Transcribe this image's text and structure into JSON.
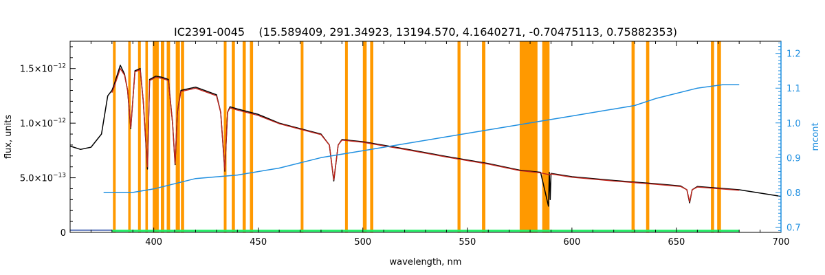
{
  "chart_data": {
    "type": "line",
    "title": "IC2391-0045    (15.589409, 291.34923, 13194.570, 4.1640271, -0.70475113, 0.75882353)",
    "xlabel": "wavelength, nm",
    "ylabel": "flux, units",
    "y2label": "mcont",
    "xlim": [
      360,
      700
    ],
    "ylim": [
      0,
      1.75e-12
    ],
    "y2lim": [
      0.685,
      1.235
    ],
    "x_ticks": [
      400,
      450,
      500,
      550,
      600,
      650,
      700
    ],
    "y_ticks": [
      {
        "value": 0,
        "mantissa": "0",
        "exponent": ""
      },
      {
        "value": 5e-13,
        "mantissa": "5.0×10",
        "exponent": "−13"
      },
      {
        "value": 1e-12,
        "mantissa": "1.0×10",
        "exponent": "−12"
      },
      {
        "value": 1.5e-12,
        "mantissa": "1.5×10",
        "exponent": "−12"
      }
    ],
    "y2_ticks": [
      0.7,
      0.8,
      0.9,
      1.0,
      1.1,
      1.2
    ],
    "masked_bands": [
      [
        380.5,
        381.8
      ],
      [
        387.8,
        389.0
      ],
      [
        392.5,
        393.8
      ],
      [
        396.0,
        397.2
      ],
      [
        399.5,
        402.4
      ],
      [
        403.4,
        405.0
      ],
      [
        406.2,
        407.8
      ],
      [
        410.5,
        412.5
      ],
      [
        413.0,
        414.5
      ],
      [
        433.5,
        434.8
      ],
      [
        437.3,
        438.8
      ],
      [
        442.5,
        444.0
      ],
      [
        446.0,
        447.5
      ],
      [
        470.3,
        471.6
      ],
      [
        491.5,
        492.8
      ],
      [
        500.0,
        501.8
      ],
      [
        503.5,
        505.0
      ],
      [
        545.3,
        546.7
      ],
      [
        557.0,
        558.6
      ],
      [
        575.0,
        583.5
      ],
      [
        585.8,
        589.3
      ],
      [
        628.5,
        630.0
      ],
      [
        635.5,
        637.0
      ],
      [
        666.5,
        668.0
      ],
      [
        669.5,
        671.3
      ]
    ],
    "series": [
      {
        "name": "",
        "role": "observed",
        "color": "#000000",
        "x": [
          360,
          365,
          370,
          375,
          378,
          380,
          381,
          384,
          386,
          387.5,
          389,
          391,
          393.5,
          395,
          397,
          398,
          401,
          404,
          407,
          409,
          410.2,
          411.3,
          413,
          420,
          430,
          432,
          434.0,
          435.3,
          436.5,
          440,
          450,
          460,
          470,
          480,
          484,
          486.1,
          488.2,
          490,
          500,
          520,
          540,
          560,
          575,
          585,
          588.8,
          589.2,
          589.6,
          590,
          600,
          620,
          640,
          652,
          655,
          656.3,
          657.5,
          660,
          680,
          700
        ],
        "y": [
          7.9e-13,
          7.6e-13,
          7.8e-13,
          9e-13,
          1.25e-12,
          1.3e-12,
          1.35e-12,
          1.53e-12,
          1.45e-12,
          1.3e-12,
          9.5e-13,
          1.48e-12,
          1.5e-12,
          1.2e-12,
          5.8e-13,
          1.4e-12,
          1.43e-12,
          1.42e-12,
          1.4e-12,
          1e-12,
          6.2e-13,
          1.1e-12,
          1.3e-12,
          1.33e-12,
          1.26e-12,
          1.1e-12,
          5.6e-13,
          1.1e-12,
          1.15e-12,
          1.13e-12,
          1.08e-12,
          1e-12,
          9.5e-13,
          9e-13,
          8e-13,
          4.7e-13,
          8e-13,
          8.5e-13,
          8.3e-13,
          7.65e-13,
          6.95e-13,
          6.3e-13,
          5.7e-13,
          5.5e-13,
          2.4e-13,
          5.5e-13,
          3e-13,
          5.4e-13,
          5.1e-13,
          4.75e-13,
          4.45e-13,
          4.25e-13,
          3.9e-13,
          2.7e-13,
          3.9e-13,
          4.2e-13,
          3.9e-13,
          3.3e-13
        ]
      },
      {
        "name": "",
        "role": "model",
        "color": "#c0261d",
        "x": [
          380,
          381,
          384,
          386,
          387.5,
          389,
          391,
          393.5,
          395,
          397,
          398,
          401,
          404,
          407,
          409,
          410.2,
          411.3,
          413,
          420,
          430,
          432,
          434.0,
          435.3,
          436.5,
          440,
          450,
          460,
          470,
          480,
          484,
          486.1,
          488.2,
          490,
          500,
          520,
          540,
          560,
          575,
          585,
          588.8,
          589.2,
          589.6,
          590,
          600,
          620,
          640,
          652,
          655,
          656.3,
          657.5,
          660,
          680
        ],
        "y": [
          1.28e-12,
          1.33e-12,
          1.5e-12,
          1.44e-12,
          1.3e-12,
          9.6e-13,
          1.47e-12,
          1.49e-12,
          1.2e-12,
          6e-13,
          1.39e-12,
          1.42e-12,
          1.41e-12,
          1.39e-12,
          1e-12,
          6.3e-13,
          1.1e-12,
          1.29e-12,
          1.32e-12,
          1.25e-12,
          1.1e-12,
          5.7e-13,
          1.1e-12,
          1.14e-12,
          1.12e-12,
          1.07e-12,
          9.95e-13,
          9.45e-13,
          8.95e-13,
          8e-13,
          4.8e-13,
          8e-13,
          8.45e-13,
          8.25e-13,
          7.6e-13,
          6.9e-13,
          6.25e-13,
          5.65e-13,
          5.45e-13,
          5.3e-13,
          5.3e-13,
          5.3e-13,
          5.35e-13,
          5.05e-13,
          4.7e-13,
          4.4e-13,
          4.2e-13,
          3.9e-13,
          2.8e-13,
          3.9e-13,
          4.15e-13,
          3.85e-13
        ]
      },
      {
        "name": "",
        "role": "residual",
        "color": "#22ee66",
        "x": [
          380,
          450,
          520,
          580,
          680
        ],
        "y": [
          1.5e-14,
          1.5e-14,
          1.5e-14,
          1.5e-14,
          1.5e-14
        ]
      },
      {
        "name": "",
        "role": "baseline",
        "color": "#1a3fa0",
        "x": [
          360,
          380
        ],
        "y": [
          2e-14,
          2e-14
        ]
      },
      {
        "name": "mcont",
        "axis": "right",
        "color": "#1f8fe0",
        "x": [
          376,
          380,
          390,
          400,
          420,
          440,
          460,
          480,
          500,
          520,
          540,
          560,
          580,
          600,
          620,
          630,
          640,
          660,
          672,
          680
        ],
        "y": [
          0.8,
          0.8,
          0.8,
          0.81,
          0.84,
          0.85,
          0.87,
          0.9,
          0.92,
          0.94,
          0.96,
          0.98,
          1.0,
          1.02,
          1.04,
          1.05,
          1.07,
          1.1,
          1.11,
          1.11
        ]
      }
    ]
  }
}
